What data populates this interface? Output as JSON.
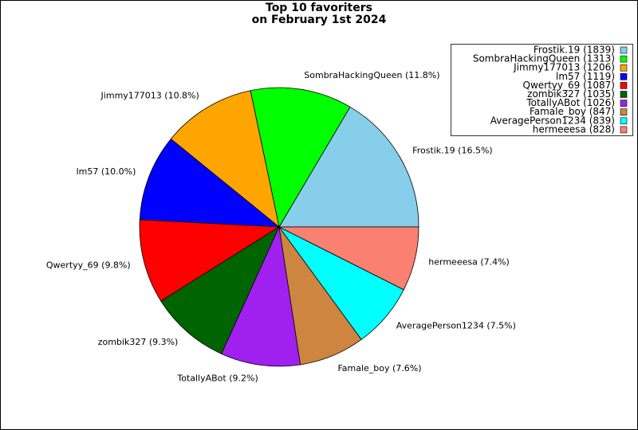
{
  "chart_data": {
    "type": "pie",
    "title": [
      "Top 10 favoriters",
      "on February 1st 2024"
    ],
    "values": [
      1839,
      1313,
      1206,
      1119,
      1087,
      1035,
      1026,
      847,
      839,
      828
    ],
    "value_labels": [
      "Frostik.19 (16.5%)",
      "SombraHackingQueen (11.8%)",
      "Jimmy177013 (10.8%)",
      "lm57 (10.0%)",
      "Qwertyy_69 (9.8%)",
      "zombik327 (9.3%)",
      "TotallyABot (9.2%)",
      "Famale_boy (7.6%)",
      "AveragePerson1234 (7.5%)",
      "hermeeesa (7.4%)"
    ],
    "legend_labels": [
      "Frostik.19 (1839)",
      "SombraHackingQueen (1313)",
      "Jimmy177013 (1206)",
      "lm57 (1119)",
      "Qwertyy_69 (1087)",
      "zombik327 (1035)",
      "TotallyABot (1026)",
      "Famale_boy (847)",
      "AveragePerson1234 (839)",
      "hermeeesa (828)"
    ],
    "colors": [
      "#87ceeb",
      "#00ff00",
      "#ffa500",
      "#0000ff",
      "#ff0000",
      "#006400",
      "#a020f0",
      "#cd853f",
      "#00ffff",
      "#fa8072"
    ],
    "legend": "upper right"
  }
}
